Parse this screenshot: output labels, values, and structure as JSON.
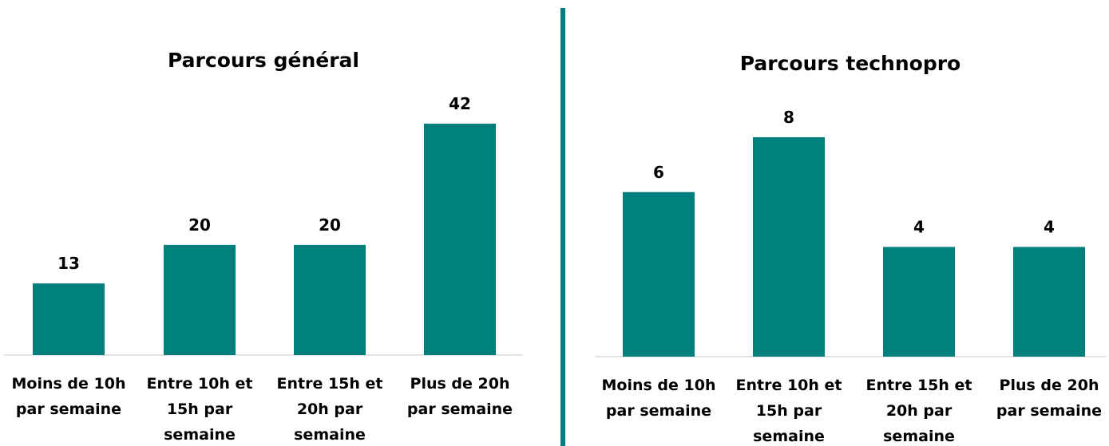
{
  "chart_data": [
    {
      "type": "bar",
      "title": "Parcours général",
      "categories": [
        "Moins de 10h par semaine",
        "Entre 10h et 15h par semaine",
        "Entre 15h et 20h par semaine",
        "Plus de 20h par semaine"
      ],
      "values": [
        13,
        20,
        20,
        42
      ],
      "color": "#007f7f"
    },
    {
      "type": "bar",
      "title": "Parcours technopro",
      "categories": [
        "Moins de 10h par semaine",
        "Entre 10h et 15h par semaine",
        "Entre 15h et 20h par semaine",
        "Plus de 20h par semaine"
      ],
      "values": [
        6,
        8,
        4,
        4
      ],
      "color": "#007f7f"
    }
  ]
}
